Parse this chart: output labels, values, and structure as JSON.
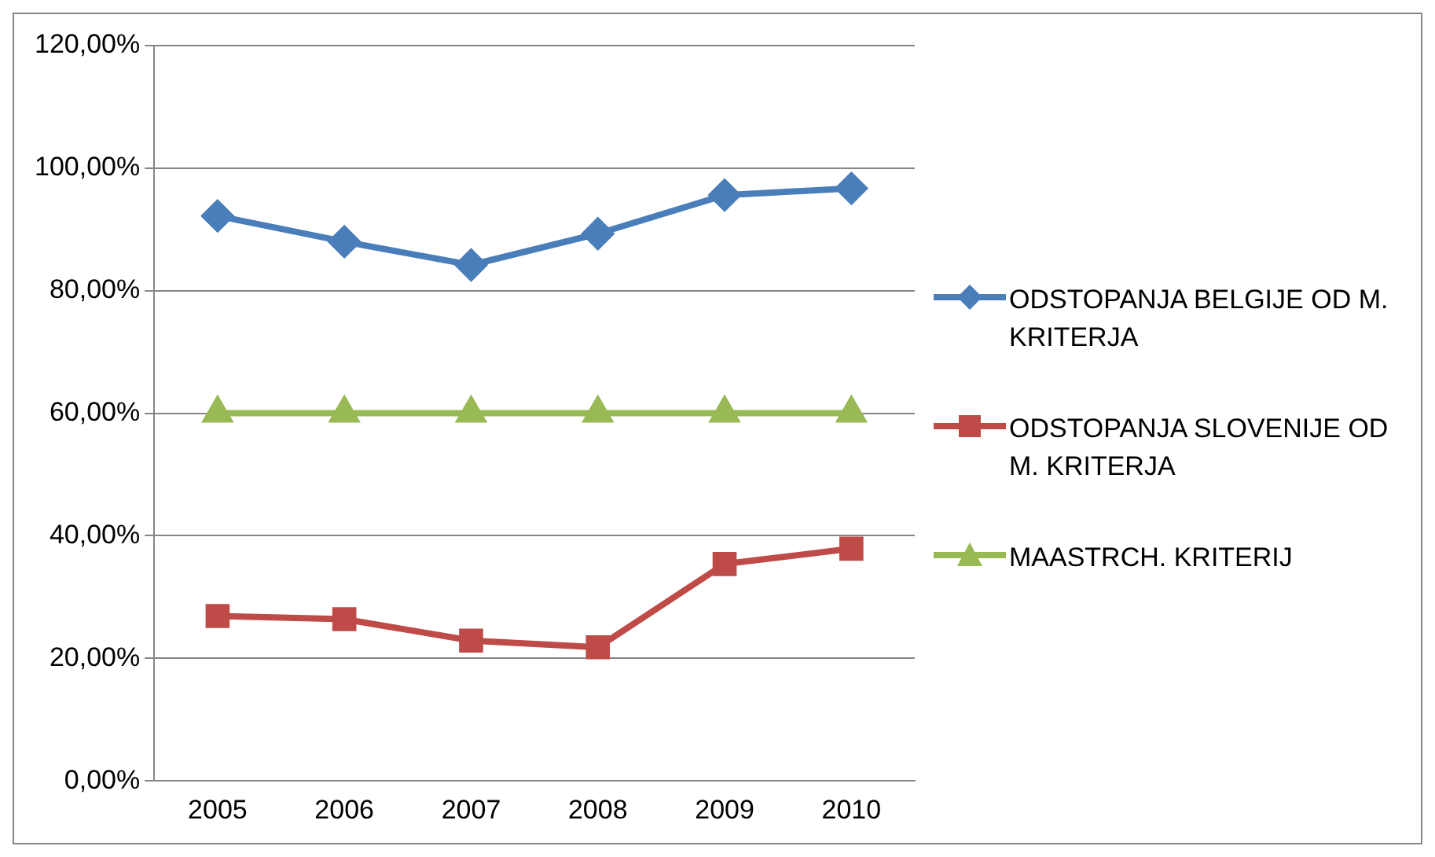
{
  "chart_data": {
    "type": "line",
    "categories": [
      "2005",
      "2006",
      "2007",
      "2008",
      "2009",
      "2010"
    ],
    "series": [
      {
        "name": "ODSTOPANJA BELGIJE OD M. KRITERJA",
        "color": "#4a7ebb",
        "marker": "diamond",
        "values": [
          92.2,
          88.0,
          84.2,
          89.3,
          95.6,
          96.7
        ]
      },
      {
        "name": "ODSTOPANJA SLOVENIJE OD M. KRITERJA",
        "color": "#be4b48",
        "marker": "square",
        "values": [
          26.9,
          26.4,
          22.9,
          21.8,
          35.4,
          37.9
        ]
      },
      {
        "name": "MAASTRCH.  KRITERIJ",
        "color": "#98b954",
        "marker": "triangle",
        "values": [
          60,
          60,
          60,
          60,
          60,
          60
        ]
      }
    ],
    "ylim": [
      0,
      120
    ],
    "yticks": [
      {
        "value": 0,
        "label": "0,00%"
      },
      {
        "value": 20,
        "label": "20,00%"
      },
      {
        "value": 40,
        "label": "40,00%"
      },
      {
        "value": 60,
        "label": "60,00%"
      },
      {
        "value": 80,
        "label": "80,00%"
      },
      {
        "value": 100,
        "label": "100,00%"
      },
      {
        "value": 120,
        "label": "120,00%"
      }
    ],
    "grid": "y",
    "legend": "right"
  }
}
